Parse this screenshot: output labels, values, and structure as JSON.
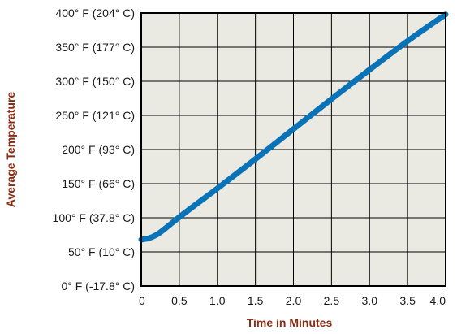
{
  "chart_data": {
    "type": "line",
    "title": "",
    "xlabel": "Time in Minutes",
    "ylabel": "Average Temperature",
    "xlim": [
      0,
      4.0
    ],
    "ylim": [
      0,
      400
    ],
    "x_ticks": [
      {
        "value": 0,
        "label": "0"
      },
      {
        "value": 0.5,
        "label": "0.5"
      },
      {
        "value": 1.0,
        "label": "1.0"
      },
      {
        "value": 1.5,
        "label": "1.5"
      },
      {
        "value": 2.0,
        "label": "2.0"
      },
      {
        "value": 2.5,
        "label": "2.5"
      },
      {
        "value": 3.0,
        "label": "3.0"
      },
      {
        "value": 3.5,
        "label": "3.5"
      },
      {
        "value": 4.0,
        "label": "4.0"
      }
    ],
    "y_ticks": [
      {
        "value": 0,
        "label": "0° F (-17.8° C)"
      },
      {
        "value": 50,
        "label": "50° F (10° C)"
      },
      {
        "value": 100,
        "label": "100° F (37.8° C)"
      },
      {
        "value": 150,
        "label": "150° F (66° C)"
      },
      {
        "value": 200,
        "label": "200° F (93° C)"
      },
      {
        "value": 250,
        "label": "250° F (121° C)"
      },
      {
        "value": 300,
        "label": "300° F (150° C)"
      },
      {
        "value": 350,
        "label": "350° F (177° C)"
      },
      {
        "value": 400,
        "label": "400° F (204° C)"
      }
    ],
    "grid": true,
    "series": [
      {
        "x": [
          0,
          0.1,
          0.2,
          0.3,
          0.4,
          0.5,
          0.7,
          1.0,
          1.5,
          2.0,
          2.5,
          3.0,
          3.5,
          4.0
        ],
        "y": [
          68,
          70,
          75,
          83,
          92,
          101,
          118,
          143,
          186,
          230,
          274,
          317,
          359,
          398
        ]
      }
    ],
    "colors": {
      "line": "#0a73b8",
      "plot_background": "#eae9e2",
      "grid": "#000000",
      "axis_title": "#8b2a10",
      "tick_text": "#1a1a1a"
    }
  }
}
